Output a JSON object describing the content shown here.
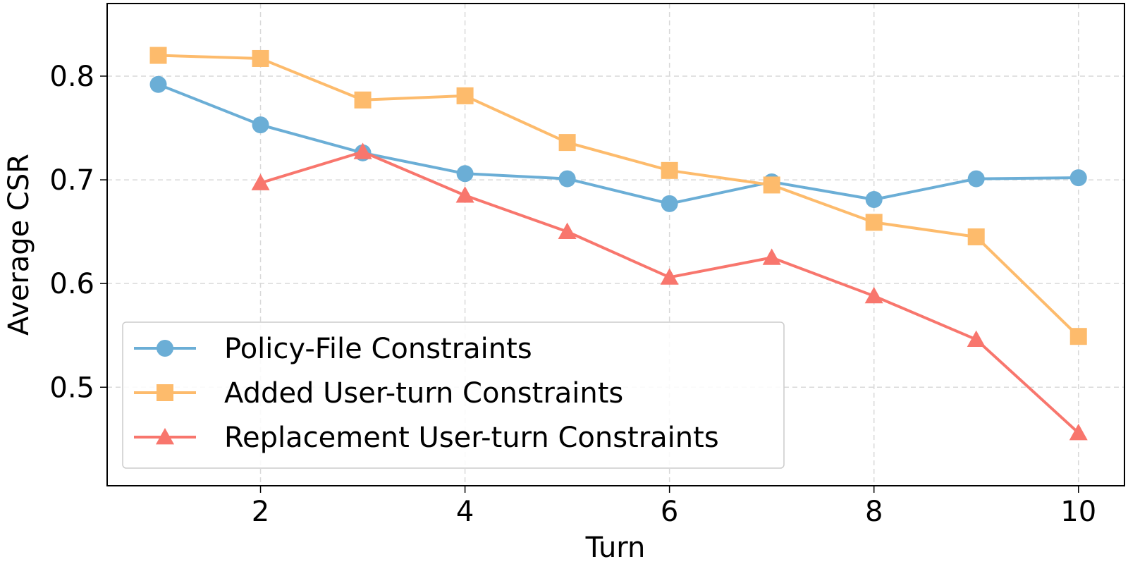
{
  "chart_data": {
    "type": "line",
    "xlabel": "Turn",
    "ylabel": "Average CSR",
    "xlim": [
      0.5,
      10.45
    ],
    "ylim": [
      0.405,
      0.87
    ],
    "xticks": [
      2,
      4,
      6,
      8,
      10
    ],
    "yticks": [
      0.5,
      0.6,
      0.7,
      0.8
    ],
    "xtick_labels": [
      "2",
      "4",
      "6",
      "8",
      "10"
    ],
    "ytick_labels": [
      "0.5",
      "0.6",
      "0.7",
      "0.8"
    ],
    "grid": true,
    "legend_position": "lower-left",
    "series": [
      {
        "name": "Policy-File Constraints",
        "color": "#6baed6",
        "marker": "circle",
        "x": [
          1,
          2,
          3,
          4,
          5,
          6,
          7,
          8,
          9,
          10
        ],
        "y": [
          0.792,
          0.753,
          0.726,
          0.706,
          0.701,
          0.677,
          0.698,
          0.681,
          0.701,
          0.702
        ]
      },
      {
        "name": "Added User-turn Constraints",
        "color": "#fdbb6c",
        "marker": "square",
        "x": [
          1,
          2,
          3,
          4,
          5,
          6,
          7,
          8,
          9,
          10
        ],
        "y": [
          0.82,
          0.817,
          0.777,
          0.781,
          0.736,
          0.709,
          0.695,
          0.659,
          0.645,
          0.549
        ]
      },
      {
        "name": "Replacement User-turn Constraints",
        "color": "#f8766d",
        "marker": "triangle",
        "x": [
          2,
          3,
          4,
          5,
          6,
          7,
          8,
          9,
          10
        ],
        "y": [
          0.697,
          0.727,
          0.685,
          0.65,
          0.606,
          0.625,
          0.588,
          0.546,
          0.456
        ]
      }
    ]
  }
}
